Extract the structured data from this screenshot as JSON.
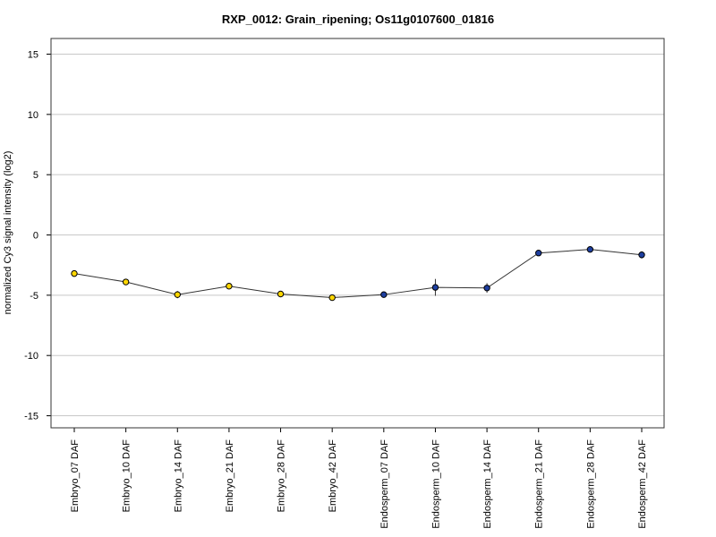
{
  "chart_data": {
    "type": "line",
    "title": "RXP_0012: Grain_ripening; Os11g0107600_01816",
    "ylabel": "normalized Cy3 signal intensity (log2)",
    "xlabel": "",
    "ylim": [
      -16,
      16.3
    ],
    "yticks": [
      -15,
      -10,
      -5,
      0,
      5,
      10,
      15
    ],
    "grid": true,
    "categories": [
      "Embryo_07 DAF",
      "Embryo_10 DAF",
      "Embryo_14 DAF",
      "Embryo_21 DAF",
      "Embryo_28 DAF",
      "Embryo_42 DAF",
      "Endosperm_07 DAF",
      "Endosperm_10 DAF",
      "Endosperm_14 DAF",
      "Endosperm_21 DAF",
      "Endosperm_28 DAF",
      "Endosperm_42 DAF"
    ],
    "values": [
      -3.2,
      -3.9,
      -4.95,
      -4.25,
      -4.9,
      -5.2,
      -4.95,
      -4.35,
      -4.4,
      -1.5,
      -1.2,
      -1.65
    ],
    "errors": [
      0.15,
      0.15,
      0.3,
      0.15,
      0.25,
      0.15,
      0.25,
      0.7,
      0.4,
      0.15,
      0.15,
      0.3
    ],
    "point_colors": [
      "#ffd700",
      "#ffd700",
      "#ffd700",
      "#ffd700",
      "#ffd700",
      "#ffd700",
      "#1e3fa0",
      "#1e3fa0",
      "#1e3fa0",
      "#1e3fa0",
      "#1e3fa0",
      "#1e3fa0"
    ]
  }
}
